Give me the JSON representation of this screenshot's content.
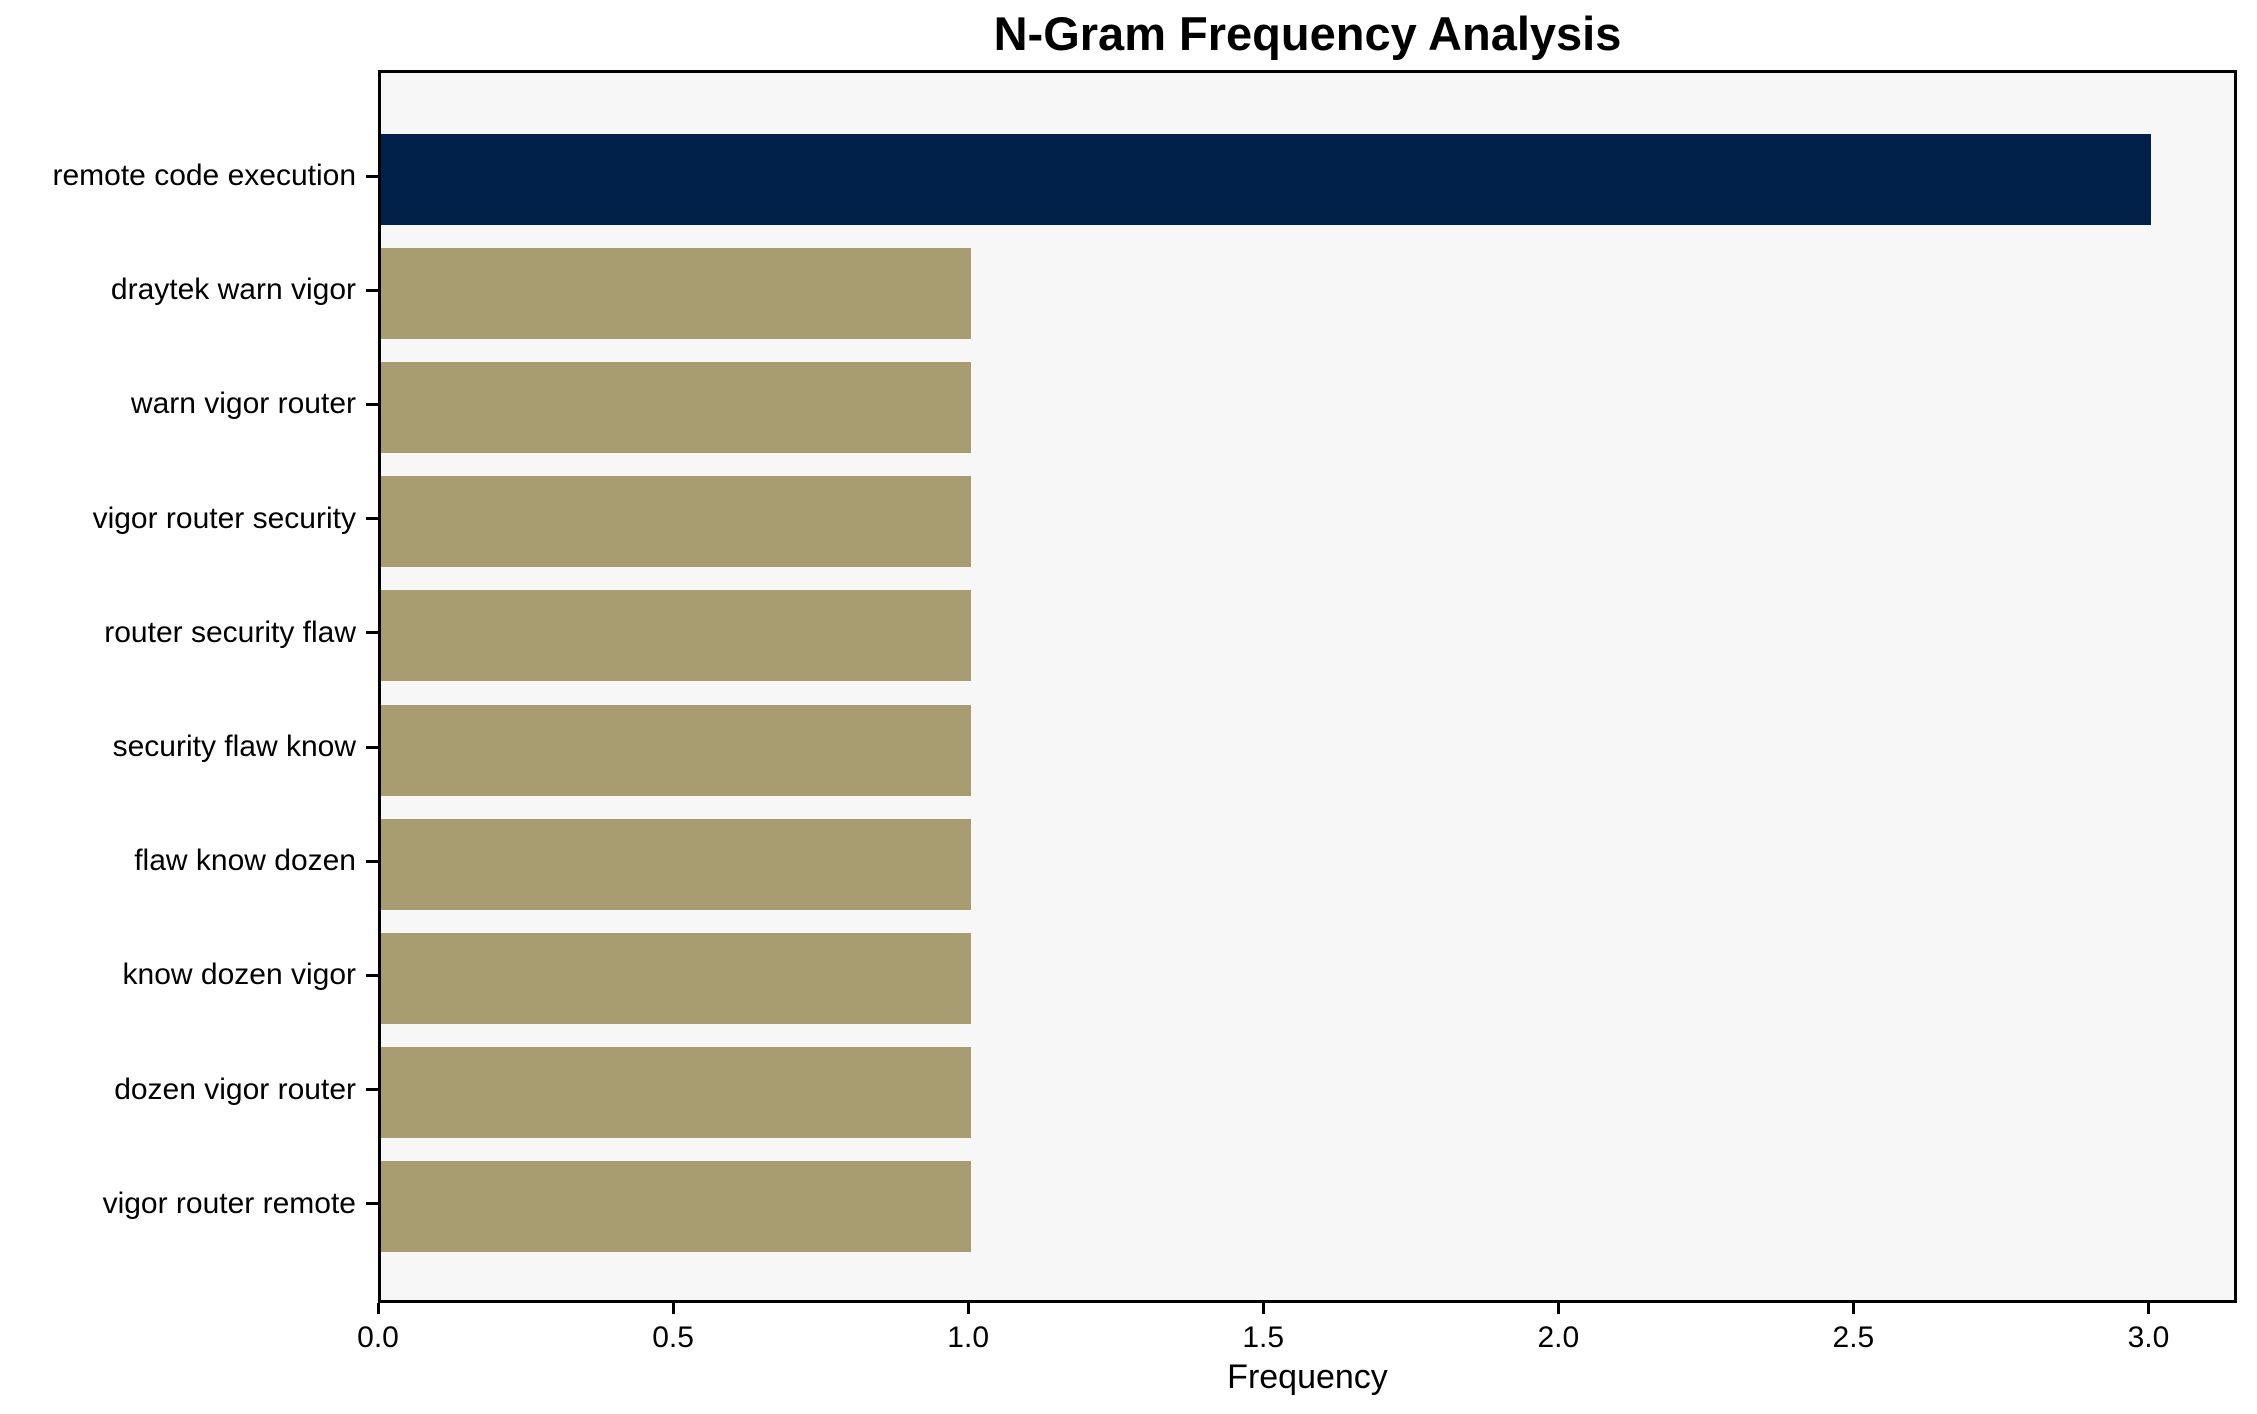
{
  "chart_data": {
    "type": "bar",
    "orientation": "horizontal",
    "title": "N-Gram Frequency Analysis",
    "xlabel": "Frequency",
    "ylabel": "",
    "categories": [
      "remote code execution",
      "draytek warn vigor",
      "warn vigor router",
      "vigor router security",
      "router security flaw",
      "security flaw know",
      "flaw know dozen",
      "know dozen vigor",
      "dozen vigor router",
      "vigor router remote"
    ],
    "values": [
      3,
      1,
      1,
      1,
      1,
      1,
      1,
      1,
      1,
      1
    ],
    "xlim": [
      0,
      3.15
    ],
    "xticks": [
      0.0,
      0.5,
      1.0,
      1.5,
      2.0,
      2.5,
      3.0
    ],
    "xtick_labels": [
      "0.0",
      "0.5",
      "1.0",
      "1.5",
      "2.0",
      "2.5",
      "3.0"
    ],
    "grid": false,
    "legend": null,
    "bar_colors": [
      "#02214a",
      "#a79d71",
      "#a79d71",
      "#a79d71",
      "#a79d71",
      "#a79d71",
      "#a79d71",
      "#a79d71",
      "#a79d71",
      "#a79d71"
    ],
    "colors": {
      "highlight_bar": "#02214a",
      "default_bar": "#a79d71",
      "plot_background": "#f7f7f7",
      "figure_background": "#ffffff",
      "spine": "#000000",
      "text": "#000000"
    }
  }
}
